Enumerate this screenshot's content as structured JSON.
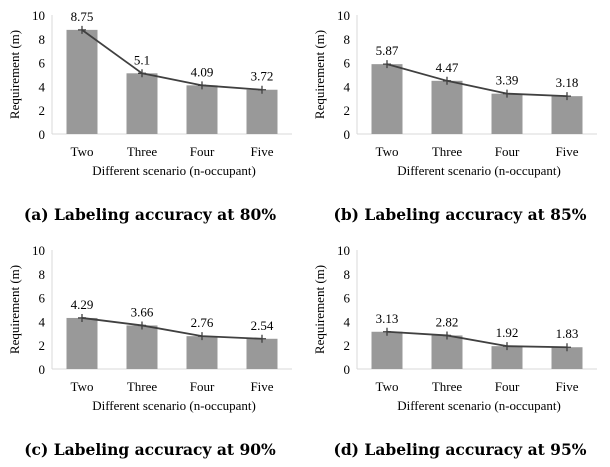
{
  "chart_data": [
    {
      "type": "bar",
      "caption": "(a) Labeling accuracy at 80%",
      "xlabel": "Different scenario (n-occupant)",
      "ylabel": "Requirement (m)",
      "ylim": [
        0,
        10
      ],
      "yticks": [
        0,
        2,
        4,
        6,
        8,
        10
      ],
      "categories": [
        "Two",
        "Three",
        "Four",
        "Five"
      ],
      "values": [
        8.75,
        5.1,
        4.09,
        3.72
      ],
      "data_labels": [
        "8.75",
        "5.1",
        "4.09",
        "3.72"
      ],
      "overlay": "line"
    },
    {
      "type": "bar",
      "caption": "(b) Labeling accuracy at 85%",
      "xlabel": "Different scenario (n-occupant)",
      "ylabel": "Requirement (m)",
      "ylim": [
        0,
        10
      ],
      "yticks": [
        0,
        2,
        4,
        6,
        8,
        10
      ],
      "categories": [
        "Two",
        "Three",
        "Four",
        "Five"
      ],
      "values": [
        5.87,
        4.47,
        3.39,
        3.18
      ],
      "data_labels": [
        "5.87",
        "4.47",
        "3.39",
        "3.18"
      ],
      "overlay": "line"
    },
    {
      "type": "bar",
      "caption": "(c) Labeling accuracy at 90%",
      "xlabel": "Different scenario (n-occupant)",
      "ylabel": "Requirement (m)",
      "ylim": [
        0,
        10
      ],
      "yticks": [
        0,
        2,
        4,
        6,
        8,
        10
      ],
      "categories": [
        "Two",
        "Three",
        "Four",
        "Five"
      ],
      "values": [
        4.29,
        3.66,
        2.76,
        2.54
      ],
      "data_labels": [
        "4.29",
        "3.66",
        "2.76",
        "2.54"
      ],
      "overlay": "line"
    },
    {
      "type": "bar",
      "caption": "(d) Labeling accuracy at 95%",
      "xlabel": "Different scenario (n-occupant)",
      "ylabel": "Requirement (m)",
      "ylim": [
        0,
        10
      ],
      "yticks": [
        0,
        2,
        4,
        6,
        8,
        10
      ],
      "categories": [
        "Two",
        "Three",
        "Four",
        "Five"
      ],
      "values": [
        3.13,
        2.82,
        1.92,
        1.83
      ],
      "data_labels": [
        "3.13",
        "2.82",
        "1.92",
        "1.83"
      ],
      "overlay": "line"
    }
  ],
  "colors": {
    "bar": "#999999",
    "line": "#404040",
    "axis": "#d9d9d9",
    "text": "#000000"
  }
}
